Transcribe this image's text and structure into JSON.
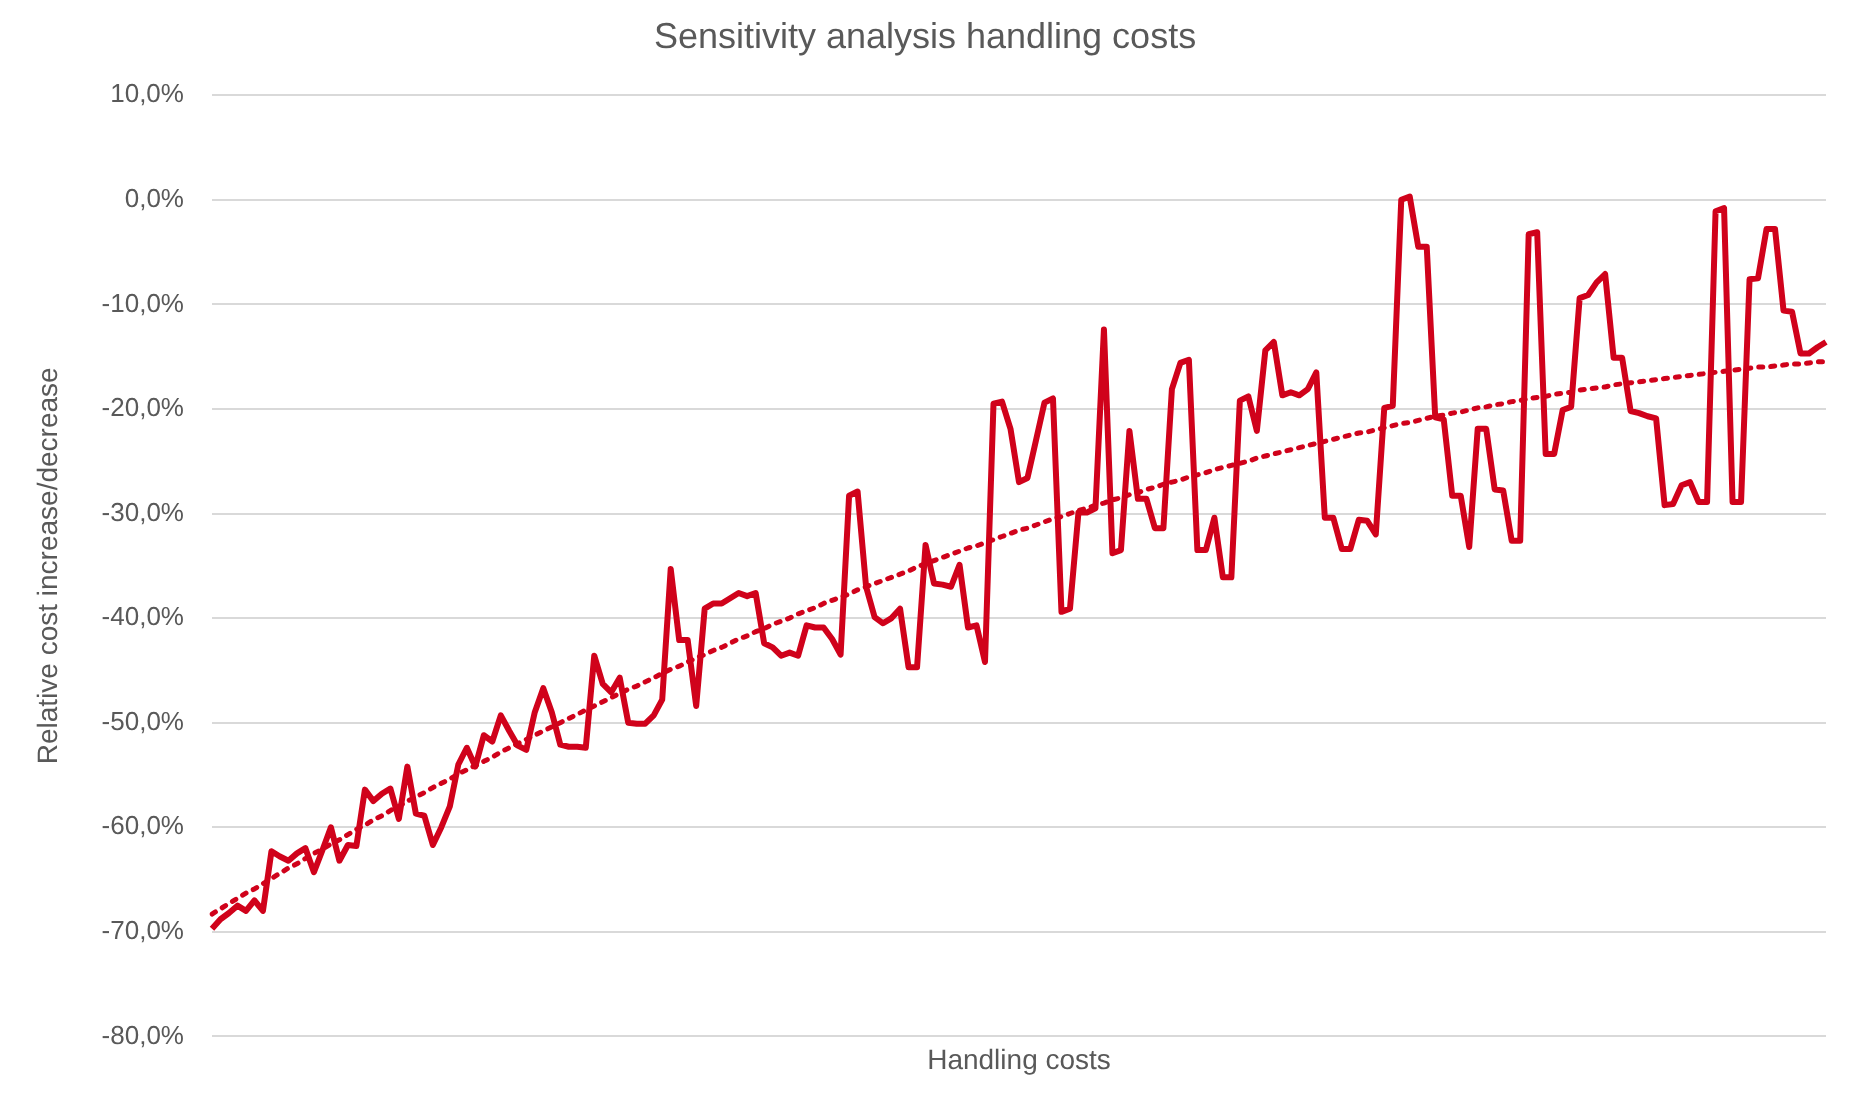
{
  "chart_data": {
    "type": "line",
    "title": "Sensitivity analysis handling costs",
    "xlabel": "Handling costs",
    "ylabel": "Relative cost increase/decrease",
    "categories": [
      null,
      null,
      null,
      null,
      null,
      null,
      null,
      null,
      null,
      null,
      null,
      null,
      null,
      null,
      null,
      null,
      null,
      null,
      null,
      null,
      null,
      null,
      null,
      null,
      null,
      null,
      null,
      null,
      null,
      null,
      null,
      null,
      null,
      null,
      null,
      null,
      null,
      null,
      null,
      null,
      null,
      null,
      null,
      null,
      null,
      null,
      null,
      null,
      null,
      null,
      null,
      null,
      null,
      null,
      null,
      null,
      null,
      null,
      null,
      null,
      null,
      null,
      null,
      null,
      null,
      null,
      null,
      null,
      null,
      null,
      null,
      null,
      null,
      null,
      null,
      null,
      null,
      null,
      null,
      null,
      null,
      null,
      null,
      null,
      null,
      null,
      null,
      null,
      null,
      null,
      null,
      null,
      null,
      null,
      null,
      null,
      null,
      null,
      null,
      null,
      null,
      null,
      null,
      null,
      null,
      null,
      null,
      null,
      null,
      null,
      null,
      null,
      null,
      null,
      null,
      null,
      null,
      null,
      null,
      null,
      null,
      null,
      null,
      null,
      null,
      null,
      null,
      null,
      null,
      null,
      null,
      null,
      null,
      null,
      null,
      null,
      null,
      null,
      null,
      null,
      null,
      null,
      null,
      null,
      null,
      null,
      null,
      null,
      null,
      null,
      null,
      null,
      null,
      null,
      null,
      null,
      null,
      null,
      null,
      null,
      null,
      null,
      null,
      null,
      null,
      null,
      null,
      null,
      null,
      null,
      null,
      null,
      null,
      null,
      null,
      null,
      null,
      null,
      null,
      null,
      null,
      null,
      null,
      null,
      null,
      null,
      null,
      null,
      null,
      null,
      null
    ],
    "series": [
      {
        "color": "#d0021b",
        "values": [
          -69.7,
          -68.8,
          -68.2,
          -67.5,
          -68,
          -67,
          -68,
          -62.3,
          -62.8,
          -63.2,
          -62.5,
          -62,
          -64.3,
          -62.2,
          -60,
          -63.2,
          -61.7,
          -61.8,
          -56.4,
          -57.5,
          -56.8,
          -56.3,
          -59.2,
          -54.2,
          -58.7,
          -58.9,
          -61.7,
          -60,
          -58,
          -54,
          -52.4,
          -54.2,
          -51.2,
          -51.8,
          -49.3,
          -50.8,
          -52.2,
          -52.6,
          -49,
          -46.7,
          -49,
          -52.1,
          -52.3,
          -52.3,
          -52.4,
          -43.6,
          -46.3,
          -47.1,
          -45.7,
          -50,
          -50.1,
          -50.1,
          -49.3,
          -47.8,
          -35.3,
          -42.1,
          -42.1,
          -48.4,
          -39.1,
          -38.6,
          -38.6,
          -38.1,
          -37.6,
          -37.9,
          -37.6,
          -42.4,
          -42.8,
          -43.6,
          -43.3,
          -43.6,
          -40.7,
          -40.9,
          -40.9,
          -42,
          -43.5,
          -28.3,
          -27.9,
          -37,
          -39.9,
          -40.5,
          -40,
          -39.1,
          -44.7,
          -44.7,
          -33,
          -36.7,
          -36.8,
          -37,
          -34.9,
          -40.9,
          -40.7,
          -44.2,
          -19.5,
          -19.3,
          -21.9,
          -27,
          -26.6,
          -23,
          -19.4,
          -19,
          -39.4,
          -39.1,
          -29.9,
          -29.9,
          -29.5,
          -12.4,
          -33.8,
          -33.5,
          -22.1,
          -28.6,
          -28.6,
          -31.4,
          -31.4,
          -18.1,
          -15.6,
          -15.3,
          -33.5,
          -33.5,
          -30.4,
          -36.1,
          -36.1,
          -19.2,
          -18.8,
          -22.1,
          -14.4,
          -13.6,
          -18.7,
          -18.4,
          -18.7,
          -18.1,
          -16.5,
          -30.4,
          -30.4,
          -33.4,
          -33.4,
          -30.6,
          -30.7,
          -32,
          -19.9,
          -19.7,
          0,
          0.3,
          -4.5,
          -4.5,
          -20.8,
          -21,
          -28.3,
          -28.3,
          -33.2,
          -21.9,
          -21.9,
          -27.7,
          -27.8,
          -32.6,
          -32.6,
          -3.3,
          -3.1,
          -24.3,
          -24.3,
          -20.1,
          -19.8,
          -9.4,
          -9.1,
          -7.9,
          -7.1,
          -15.1,
          -15.1,
          -20.2,
          -20.4,
          -20.7,
          -20.9,
          -29.2,
          -29.1,
          -27.3,
          -27,
          -28.9,
          -28.9,
          -1.1,
          -0.8,
          -28.9,
          -28.9,
          -7.6,
          -7.5,
          -2.8,
          -2.8,
          -10.6,
          -10.7,
          -14.7,
          -14.7,
          -14.1,
          -13.6
        ]
      },
      {
        "type": "line",
        "line_style": "dotted",
        "color": "#d0021b",
        "values": [
          -68.3,
          -67.8,
          -67.3,
          -66.8,
          -66.3,
          -65.9,
          -65.4,
          -64.9,
          -64.4,
          -63.9,
          -63.5,
          -63.0,
          -62.5,
          -62.1,
          -61.6,
          -61.2,
          -60.7,
          -60.2,
          -59.8,
          -59.3,
          -58.9,
          -58.4,
          -58.0,
          -57.5,
          -57.1,
          -56.7,
          -56.2,
          -55.8,
          -55.4,
          -54.9,
          -54.5,
          -54.1,
          -53.7,
          -53.3,
          -52.8,
          -52.4,
          -52.0,
          -51.6,
          -51.2,
          -50.8,
          -50.4,
          -50.0,
          -49.6,
          -49.2,
          -48.8,
          -48.4,
          -48.0,
          -47.6,
          -47.2,
          -46.8,
          -46.5,
          -46.1,
          -45.7,
          -45.3,
          -44.9,
          -44.6,
          -44.2,
          -43.8,
          -43.5,
          -43.1,
          -42.8,
          -42.4,
          -42.0,
          -41.7,
          -41.3,
          -41.0,
          -40.6,
          -40.3,
          -40.0,
          -39.6,
          -39.3,
          -39.0,
          -38.6,
          -38.3,
          -38.0,
          -37.7,
          -37.3,
          -37.0,
          -36.7,
          -36.4,
          -36.1,
          -35.8,
          -35.5,
          -35.1,
          -34.8,
          -34.5,
          -34.2,
          -33.9,
          -33.6,
          -33.3,
          -33.1,
          -32.8,
          -32.5,
          -32.2,
          -31.9,
          -31.6,
          -31.4,
          -31.1,
          -30.8,
          -30.5,
          -30.3,
          -30.0,
          -29.7,
          -29.5,
          -29.2,
          -29.0,
          -28.7,
          -28.5,
          -28.2,
          -28.0,
          -27.7,
          -27.5,
          -27.2,
          -27.0,
          -26.8,
          -26.5,
          -26.3,
          -26.1,
          -25.8,
          -25.6,
          -25.4,
          -25.2,
          -25.0,
          -24.7,
          -24.5,
          -24.3,
          -24.1,
          -23.9,
          -23.7,
          -23.5,
          -23.3,
          -23.1,
          -22.9,
          -22.7,
          -22.5,
          -22.3,
          -22.2,
          -22.0,
          -21.8,
          -21.6,
          -21.4,
          -21.3,
          -21.1,
          -20.9,
          -20.7,
          -20.6,
          -20.4,
          -20.3,
          -20.1,
          -19.9,
          -19.8,
          -19.6,
          -19.5,
          -19.3,
          -19.2,
          -19.0,
          -18.9,
          -18.8,
          -18.6,
          -18.5,
          -18.4,
          -18.2,
          -18.1,
          -18.0,
          -17.9,
          -17.7,
          -17.6,
          -17.5,
          -17.4,
          -17.3,
          -17.2,
          -17.1,
          -17.0,
          -16.9,
          -16.8,
          -16.7,
          -16.6,
          -16.5,
          -16.4,
          -16.3,
          -16.2,
          -16.1,
          -16.0,
          -16.0,
          -15.9,
          -15.8,
          -15.7,
          -15.7,
          -15.6,
          -15.5,
          -15.5
        ]
      }
    ],
    "ylim": [
      -80,
      10
    ],
    "yticks": [
      {
        "value": -80,
        "label": "-80,0%"
      },
      {
        "value": -70,
        "label": "-70,0%"
      },
      {
        "value": -60,
        "label": "-60,0%"
      },
      {
        "value": -50,
        "label": "-50,0%"
      },
      {
        "value": -40,
        "label": "-40,0%"
      },
      {
        "value": -30,
        "label": "-30,0%"
      },
      {
        "value": -20,
        "label": "-20,0%"
      },
      {
        "value": -10,
        "label": "-10,0%"
      },
      {
        "value": 0,
        "label": "0,0%"
      },
      {
        "value": 10,
        "label": "10,0%"
      }
    ],
    "grid": "y",
    "legend": false,
    "tick_labels": "y",
    "marker": "none",
    "line_style": "solid"
  }
}
